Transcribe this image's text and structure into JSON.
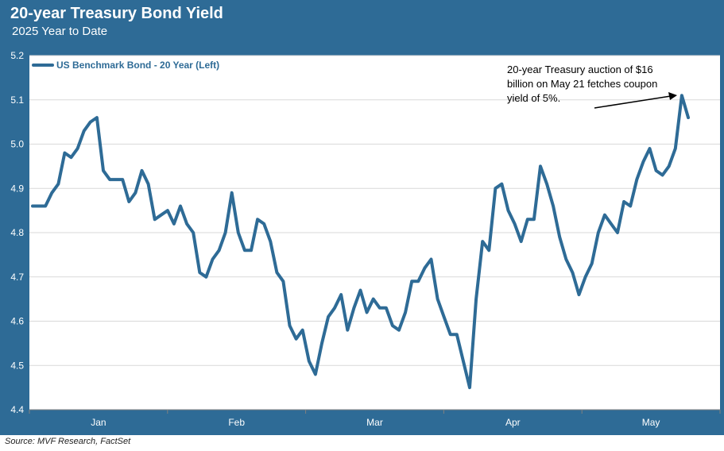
{
  "header": {
    "title": "20-year Treasury Bond Yield",
    "subtitle": "2025 Year to Date"
  },
  "footer": {
    "source": "Source: MVF Research, FactSet"
  },
  "colors": {
    "frame": "#2e6b96",
    "line": "#2e6b96",
    "plot_bg": "#ffffff",
    "grid": "#d9d9d9"
  },
  "chart_data": {
    "type": "line",
    "title": "20-year Treasury Bond Yield",
    "subtitle": "2025 Year to Date",
    "ylim": [
      4.4,
      5.2
    ],
    "yticks": [
      "4.4",
      "4.5",
      "4.6",
      "4.7",
      "4.8",
      "4.9",
      "5.0",
      "5.1",
      "5.2"
    ],
    "yticks_values": [
      4.4,
      4.5,
      4.6,
      4.7,
      4.8,
      4.9,
      5.0,
      5.1,
      5.2
    ],
    "xticks": [
      "Jan",
      "Feb",
      "Mar",
      "Apr",
      "May"
    ],
    "grid": "horizontal",
    "legend_placement": "top-left",
    "series": [
      {
        "name": "US Benchmark  Bond - 20 Year (Left)",
        "values": [
          4.86,
          4.86,
          4.86,
          4.89,
          4.91,
          4.98,
          4.97,
          4.99,
          5.03,
          5.05,
          5.06,
          4.94,
          4.92,
          4.92,
          4.92,
          4.87,
          4.89,
          4.94,
          4.91,
          4.83,
          4.84,
          4.85,
          4.82,
          4.86,
          4.82,
          4.8,
          4.71,
          4.7,
          4.74,
          4.76,
          4.8,
          4.89,
          4.8,
          4.76,
          4.76,
          4.83,
          4.82,
          4.78,
          4.71,
          4.69,
          4.59,
          4.56,
          4.58,
          4.51,
          4.48,
          4.55,
          4.61,
          4.63,
          4.66,
          4.58,
          4.63,
          4.67,
          4.62,
          4.65,
          4.63,
          4.63,
          4.59,
          4.58,
          4.62,
          4.69,
          4.69,
          4.72,
          4.74,
          4.65,
          4.61,
          4.57,
          4.57,
          4.51,
          4.45,
          4.65,
          4.78,
          4.76,
          4.9,
          4.91,
          4.85,
          4.82,
          4.78,
          4.83,
          4.83,
          4.95,
          4.91,
          4.86,
          4.79,
          4.74,
          4.71,
          4.66,
          4.7,
          4.73,
          4.8,
          4.84,
          4.82,
          4.8,
          4.87,
          4.86,
          4.92,
          4.96,
          4.99,
          4.94,
          4.93,
          4.95,
          4.99,
          5.11,
          5.06
        ]
      }
    ],
    "annotations": [
      {
        "lines": [
          "20-year Treasury auction of $16",
          "billion on May 21 fetches coupon",
          "yield of 5%."
        ]
      }
    ]
  }
}
